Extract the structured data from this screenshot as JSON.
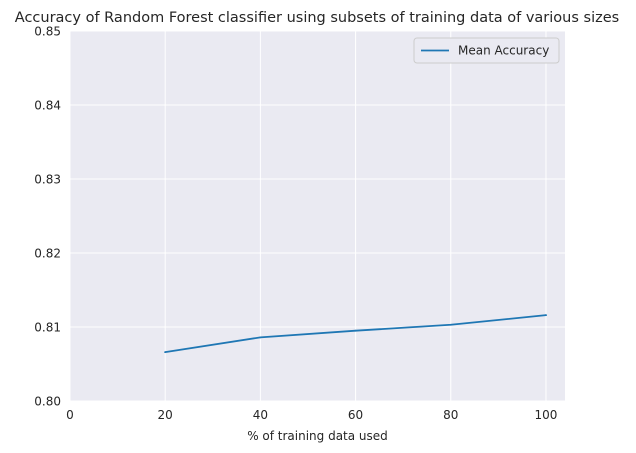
{
  "chart_data": {
    "type": "line",
    "title": "Accuracy of Random Forest classifier using subsets of training data of various sizes",
    "xlabel": "% of training data used",
    "ylabel": "",
    "xlim": [
      0,
      104
    ],
    "ylim": [
      0.8,
      0.85
    ],
    "xticks": [
      0,
      20,
      40,
      60,
      80,
      100
    ],
    "yticks": [
      0.8,
      0.81,
      0.82,
      0.83,
      0.84,
      0.85
    ],
    "xtick_labels": [
      "0",
      "20",
      "40",
      "60",
      "80",
      "100"
    ],
    "ytick_labels": [
      "0.80",
      "0.81",
      "0.82",
      "0.83",
      "0.84",
      "0.85"
    ],
    "grid": true,
    "legend_position": "top-right",
    "series": [
      {
        "name": "Mean Accuracy",
        "x": [
          20,
          40,
          60,
          80,
          100
        ],
        "values": [
          0.8066,
          0.8086,
          0.8095,
          0.8103,
          0.8116
        ],
        "color": "#1f77b4"
      }
    ]
  },
  "colors": {
    "plot_background": "#eaeaf2",
    "grid": "#ffffff",
    "text": "#262626"
  }
}
